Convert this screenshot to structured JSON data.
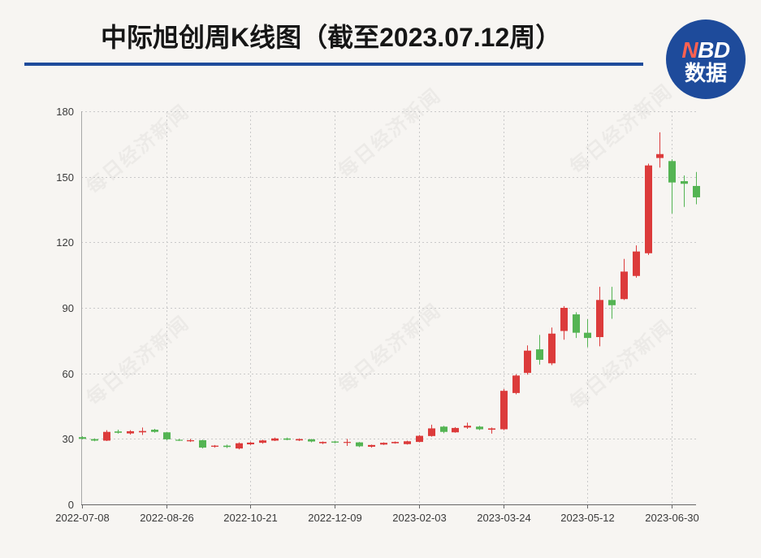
{
  "watermark": "每日经济新闻",
  "logo": {
    "text": "NBD",
    "subtext": "数据"
  },
  "colors": {
    "up": "#dc3b3b",
    "down": "#54b453",
    "accent": "#1e4b9b",
    "background": "#f7f5f2"
  },
  "chart_data": {
    "type": "candlestick",
    "title": "中际旭创周K线图（截至2023.07.12周）",
    "ylim": [
      0,
      180
    ],
    "yticks": [
      0,
      30,
      60,
      90,
      120,
      150,
      180
    ],
    "grid": true,
    "candles": [
      {
        "open": 30.8,
        "high": 31.2,
        "low": 29.8,
        "close": 30.0,
        "label": "2022-07-08"
      },
      {
        "open": 29.9,
        "high": 30.2,
        "low": 28.9,
        "close": 29.2
      },
      {
        "open": 29.2,
        "high": 34.0,
        "low": 29.0,
        "close": 33.2
      },
      {
        "open": 33.4,
        "high": 34.2,
        "low": 32.4,
        "close": 32.8
      },
      {
        "open": 32.5,
        "high": 34.0,
        "low": 32.0,
        "close": 33.5
      },
      {
        "open": 33.0,
        "high": 35.2,
        "low": 31.8,
        "close": 33.6
      },
      {
        "open": 34.2,
        "high": 34.6,
        "low": 32.8,
        "close": 33.2
      },
      {
        "open": 33.0,
        "high": 33.2,
        "low": 29.4,
        "close": 29.8,
        "label": "2022-08-26"
      },
      {
        "open": 29.6,
        "high": 30.0,
        "low": 29.0,
        "close": 29.3
      },
      {
        "open": 28.9,
        "high": 30.0,
        "low": 28.6,
        "close": 29.4
      },
      {
        "open": 29.4,
        "high": 29.6,
        "low": 25.6,
        "close": 26.0
      },
      {
        "open": 26.4,
        "high": 27.2,
        "low": 26.0,
        "close": 26.9
      },
      {
        "open": 26.9,
        "high": 27.4,
        "low": 25.8,
        "close": 26.3
      },
      {
        "open": 25.6,
        "high": 28.4,
        "low": 25.2,
        "close": 28.0
      },
      {
        "open": 27.5,
        "high": 28.6,
        "low": 27.2,
        "close": 28.3,
        "label": "2022-10-21"
      },
      {
        "open": 28.2,
        "high": 29.6,
        "low": 27.8,
        "close": 29.3
      },
      {
        "open": 29.2,
        "high": 30.6,
        "low": 29.0,
        "close": 30.2
      },
      {
        "open": 30.2,
        "high": 30.6,
        "low": 29.4,
        "close": 29.6
      },
      {
        "open": 29.3,
        "high": 30.2,
        "low": 29.0,
        "close": 29.9
      },
      {
        "open": 29.8,
        "high": 30.0,
        "low": 28.4,
        "close": 28.8
      },
      {
        "open": 28.0,
        "high": 28.8,
        "low": 27.6,
        "close": 28.6
      },
      {
        "open": 28.8,
        "high": 29.0,
        "low": 28.0,
        "close": 28.3,
        "label": "2022-12-09"
      },
      {
        "open": 28.3,
        "high": 30.0,
        "low": 26.8,
        "close": 28.6
      },
      {
        "open": 28.4,
        "high": 28.6,
        "low": 26.2,
        "close": 26.6
      },
      {
        "open": 26.4,
        "high": 27.4,
        "low": 26.0,
        "close": 27.2
      },
      {
        "open": 27.4,
        "high": 28.4,
        "low": 27.2,
        "close": 28.2
      },
      {
        "open": 28.0,
        "high": 28.8,
        "low": 27.8,
        "close": 28.6
      },
      {
        "open": 27.6,
        "high": 29.2,
        "low": 27.4,
        "close": 28.9
      },
      {
        "open": 28.6,
        "high": 31.8,
        "low": 28.4,
        "close": 31.4,
        "label": "2023-02-03"
      },
      {
        "open": 31.3,
        "high": 36.5,
        "low": 31.0,
        "close": 34.8
      },
      {
        "open": 35.6,
        "high": 36.0,
        "low": 32.6,
        "close": 33.2
      },
      {
        "open": 33.0,
        "high": 35.4,
        "low": 32.8,
        "close": 35.0
      },
      {
        "open": 35.2,
        "high": 37.4,
        "low": 34.6,
        "close": 36.0
      },
      {
        "open": 35.6,
        "high": 36.0,
        "low": 34.0,
        "close": 34.4
      },
      {
        "open": 34.2,
        "high": 35.2,
        "low": 32.4,
        "close": 34.8
      },
      {
        "open": 34.4,
        "high": 52.8,
        "low": 34.0,
        "close": 52.0,
        "label": "2023-03-24"
      },
      {
        "open": 51.0,
        "high": 59.6,
        "low": 50.4,
        "close": 59.0
      },
      {
        "open": 60.2,
        "high": 72.8,
        "low": 59.4,
        "close": 70.4
      },
      {
        "open": 71.0,
        "high": 77.6,
        "low": 64.0,
        "close": 66.2
      },
      {
        "open": 64.6,
        "high": 81.0,
        "low": 63.8,
        "close": 78.2
      },
      {
        "open": 79.4,
        "high": 90.8,
        "low": 75.4,
        "close": 90.0
      },
      {
        "open": 87.0,
        "high": 88.0,
        "low": 76.2,
        "close": 78.6
      },
      {
        "open": 78.6,
        "high": 84.8,
        "low": 72.0,
        "close": 76.2,
        "label": "2023-05-12"
      },
      {
        "open": 76.6,
        "high": 99.6,
        "low": 72.4,
        "close": 93.6
      },
      {
        "open": 93.6,
        "high": 99.6,
        "low": 85.0,
        "close": 91.2
      },
      {
        "open": 94.0,
        "high": 112.4,
        "low": 93.6,
        "close": 106.6
      },
      {
        "open": 104.6,
        "high": 118.6,
        "low": 103.8,
        "close": 115.8
      },
      {
        "open": 115.0,
        "high": 156.0,
        "low": 114.2,
        "close": 155.2
      },
      {
        "open": 158.6,
        "high": 170.4,
        "low": 154.2,
        "close": 160.4
      },
      {
        "open": 157.2,
        "high": 158.0,
        "low": 133.2,
        "close": 147.4,
        "label": "2023-06-30"
      },
      {
        "open": 148.0,
        "high": 150.6,
        "low": 136.2,
        "close": 146.8
      },
      {
        "open": 145.8,
        "high": 152.2,
        "low": 137.4,
        "close": 140.6
      }
    ]
  }
}
